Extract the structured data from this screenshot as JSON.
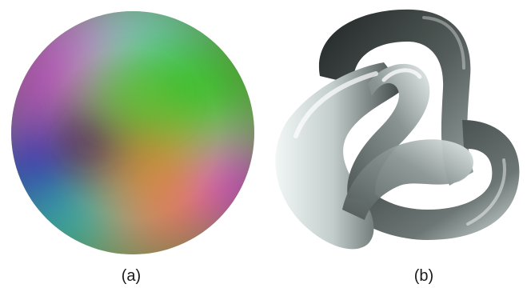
{
  "panels": {
    "a": {
      "caption": "(a)"
    },
    "b": {
      "caption": "(b)"
    }
  },
  "colors": {
    "background": "#ffffff",
    "sphere_green": "#4fc23a",
    "sphere_magenta": "#d63ad8",
    "sphere_blue": "#1f3fd6",
    "sphere_orange": "#d88a3a",
    "sphere_cyan": "#7fd8e0",
    "knot_dark": "#2b3130",
    "knot_light": "#dfe8e6"
  }
}
